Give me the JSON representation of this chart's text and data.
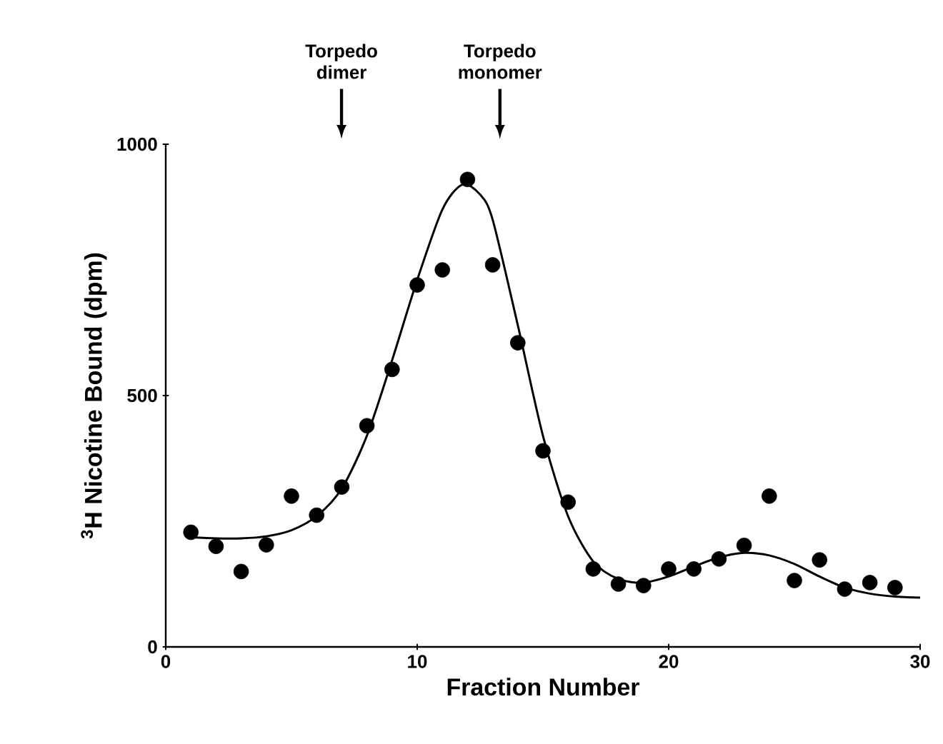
{
  "chart_data": {
    "type": "scatter",
    "xlabel": "Fraction Number",
    "ylabel": "$^{3}$H Nicotine Bound (dpm)",
    "xlim": [
      0,
      30
    ],
    "ylim": [
      0,
      1000
    ],
    "xticks": [
      0,
      10,
      20,
      30
    ],
    "yticks": [
      0,
      500,
      1000
    ],
    "grid": false,
    "marker": "circle",
    "series": [
      {
        "color": "#000000",
        "x": [
          1,
          2,
          3,
          4,
          5,
          6,
          7,
          8,
          9,
          10,
          11,
          12,
          13,
          14,
          15,
          16,
          17,
          18,
          19,
          20,
          21,
          22,
          23,
          24,
          25,
          26,
          27,
          28,
          29
        ],
        "values": [
          228,
          200,
          150,
          203,
          300,
          262,
          318,
          440,
          552,
          720,
          750,
          930,
          760,
          605,
          390,
          288,
          155,
          125,
          122,
          155,
          155,
          175,
          202,
          300,
          132,
          173,
          115,
          128,
          118
        ]
      },
      {
        "type": "line",
        "color": "#000000",
        "marker": "none",
        "line_style": "solid",
        "x": [
          1,
          2,
          3,
          4,
          5,
          6,
          7,
          8,
          9,
          10,
          11,
          11.8,
          12.5,
          13,
          14,
          15,
          16,
          17,
          18,
          19,
          20,
          21,
          22,
          23,
          24,
          25,
          26,
          27,
          28,
          29,
          30
        ],
        "values": [
          218,
          216,
          216,
          220,
          232,
          260,
          315,
          420,
          570,
          730,
          870,
          920,
          900,
          850,
          640,
          420,
          260,
          170,
          135,
          128,
          140,
          160,
          178,
          187,
          182,
          165,
          140,
          118,
          106,
          100,
          98
        ]
      }
    ],
    "annotations": [
      "Torpedo dimer",
      "Torpedo monomer"
    ]
  }
}
